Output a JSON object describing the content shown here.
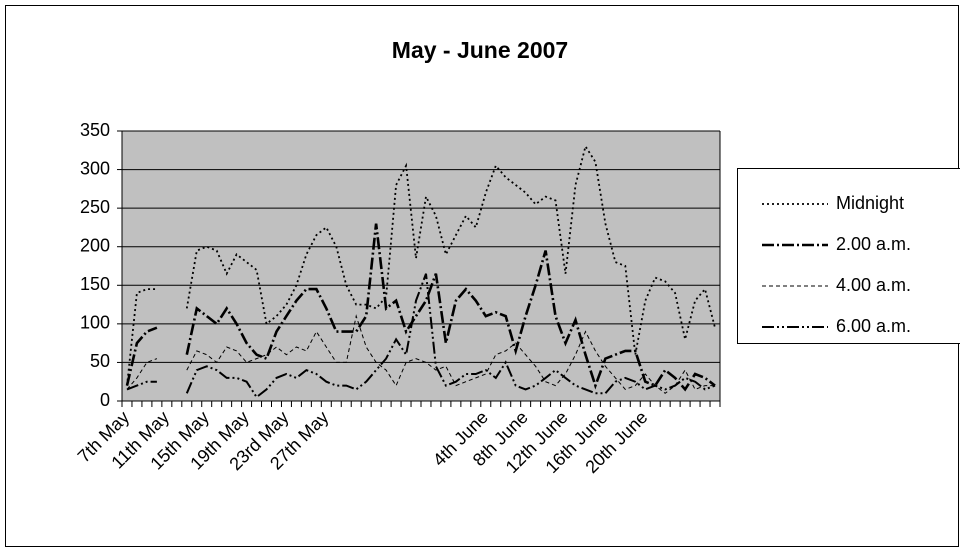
{
  "chart_data": {
    "type": "line",
    "title": "May - June 2007",
    "categories": [
      "7th May",
      null,
      null,
      null,
      "11th May",
      null,
      null,
      null,
      "15th May",
      null,
      null,
      null,
      "19th May",
      null,
      null,
      null,
      "23rd May",
      null,
      null,
      null,
      "27th May",
      null,
      null,
      null,
      null,
      null,
      null,
      null,
      null,
      null,
      null,
      null,
      null,
      null,
      null,
      null,
      "4th June",
      null,
      null,
      null,
      "8th June",
      null,
      null,
      null,
      "12th June",
      null,
      null,
      null,
      "16th June",
      null,
      null,
      null,
      "20th June",
      null,
      null,
      null,
      null,
      null,
      null,
      null
    ],
    "ylim": [
      0,
      350
    ],
    "yticks": [
      0,
      50,
      100,
      150,
      200,
      250,
      300,
      350
    ],
    "grid": true,
    "legend": "right",
    "series": [
      {
        "name": "Midnight",
        "color": "#000000",
        "dash": "2,3",
        "width": 1.8,
        "values": [
          20,
          140,
          145,
          145,
          null,
          null,
          120,
          195,
          200,
          195,
          165,
          190,
          180,
          170,
          100,
          110,
          125,
          150,
          190,
          215,
          225,
          200,
          150,
          125,
          125,
          120,
          135,
          280,
          305,
          185,
          265,
          240,
          190,
          215,
          240,
          225,
          270,
          305,
          290,
          280,
          270,
          255,
          265,
          260,
          165,
          280,
          330,
          310,
          230,
          180,
          175,
          60,
          130,
          160,
          155,
          140,
          80,
          130,
          145,
          95
        ]
      },
      {
        "name": "2.00 a.m.",
        "color": "#000000",
        "dash": "12,3,2,3",
        "width": 2.6,
        "values": [
          20,
          75,
          90,
          95,
          null,
          null,
          60,
          120,
          110,
          100,
          120,
          100,
          75,
          60,
          55,
          90,
          110,
          130,
          145,
          145,
          120,
          90,
          90,
          90,
          110,
          230,
          120,
          130,
          90,
          110,
          130,
          165,
          75,
          130,
          145,
          130,
          110,
          115,
          110,
          65,
          110,
          150,
          195,
          110,
          75,
          105,
          60,
          20,
          55,
          60,
          65,
          65,
          25,
          20,
          40,
          30,
          15,
          35,
          30,
          20
        ]
      },
      {
        "name": "4.00 a.m.",
        "color": "#000000",
        "dash": "4,3",
        "width": 1,
        "values": [
          15,
          30,
          50,
          55,
          null,
          null,
          40,
          65,
          60,
          50,
          70,
          65,
          50,
          55,
          60,
          70,
          60,
          70,
          65,
          90,
          70,
          50,
          50,
          110,
          70,
          50,
          40,
          20,
          50,
          55,
          50,
          40,
          45,
          20,
          25,
          30,
          35,
          60,
          65,
          75,
          60,
          45,
          25,
          20,
          35,
          60,
          90,
          65,
          45,
          30,
          15,
          20,
          35,
          20,
          10,
          20,
          40,
          15,
          20,
          20
        ]
      },
      {
        "name": "6.00 a.m.",
        "color": "#000000",
        "dash": "12,3,2,3,2,3",
        "width": 2,
        "values": [
          15,
          20,
          25,
          25,
          null,
          null,
          10,
          40,
          45,
          40,
          30,
          30,
          25,
          5,
          15,
          30,
          35,
          30,
          40,
          35,
          25,
          20,
          20,
          15,
          25,
          40,
          55,
          80,
          60,
          130,
          165,
          45,
          20,
          25,
          35,
          35,
          40,
          30,
          50,
          20,
          15,
          20,
          30,
          40,
          30,
          20,
          15,
          10,
          10,
          25,
          30,
          25,
          15,
          20,
          15,
          20,
          30,
          25,
          15,
          20
        ]
      }
    ]
  }
}
